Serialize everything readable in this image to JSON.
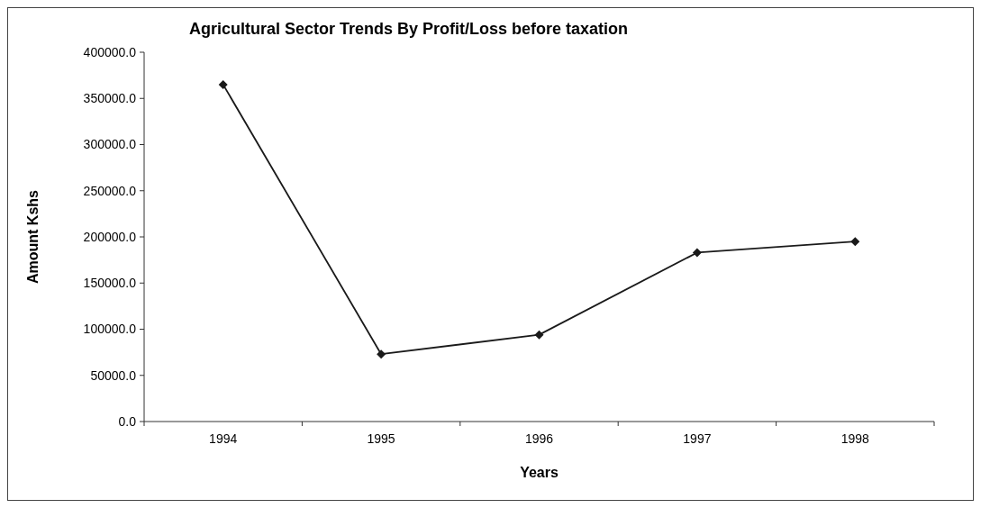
{
  "chart_data": {
    "type": "line",
    "title": "Agricultural Sector Trends By Profit/Loss before taxation",
    "xlabel": "Years",
    "ylabel": "Amount Kshs",
    "categories": [
      "1994",
      "1995",
      "1996",
      "1997",
      "1998"
    ],
    "series": [
      {
        "color": "#1a1a1a",
        "values": [
          365000,
          73000,
          94000,
          183000,
          195000
        ]
      }
    ],
    "ylim": [
      0,
      400000
    ],
    "yticks": [
      {
        "value": 0,
        "label": "0.0"
      },
      {
        "value": 50000,
        "label": "50000.0"
      },
      {
        "value": 100000,
        "label": "100000.0"
      },
      {
        "value": 150000,
        "label": "150000.0"
      },
      {
        "value": 200000,
        "label": "200000.0"
      },
      {
        "value": 250000,
        "label": "250000.0"
      },
      {
        "value": 300000,
        "label": "300000.0"
      },
      {
        "value": 350000,
        "label": "350000.0"
      },
      {
        "value": 400000,
        "label": "400000.0"
      }
    ],
    "marker": "diamond",
    "line_style": "solid",
    "grid": false
  }
}
